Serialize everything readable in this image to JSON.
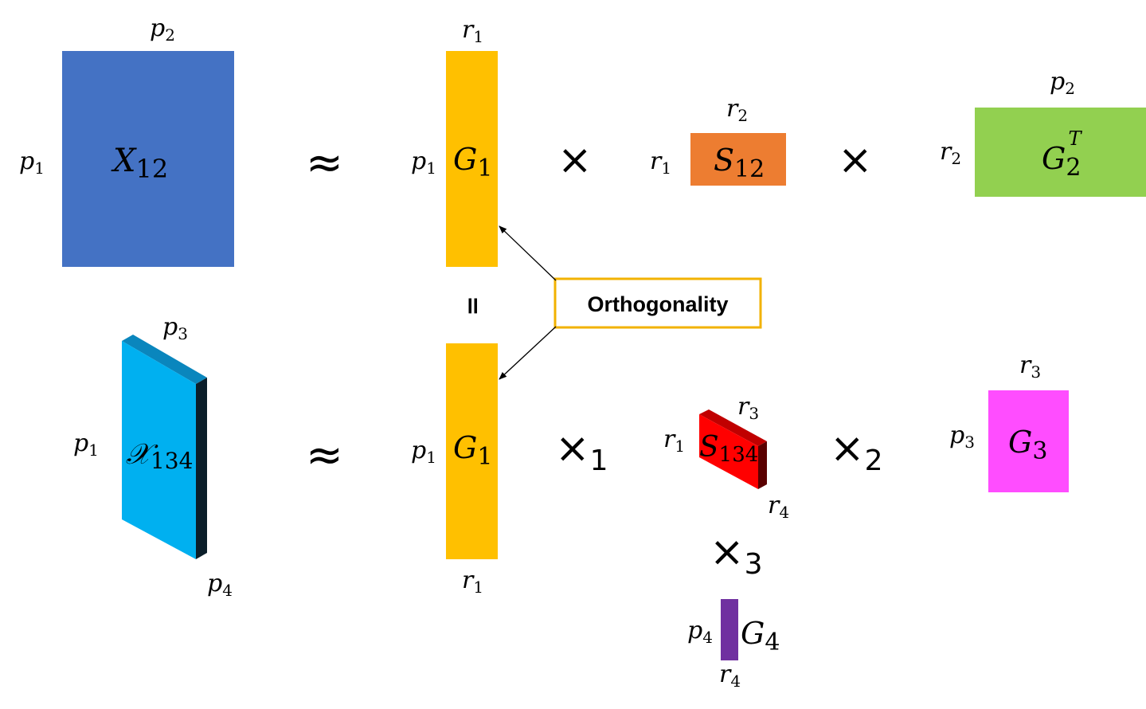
{
  "colors": {
    "x12": "#4472c4",
    "g1": "#ffc000",
    "s12": "#ed7d31",
    "g2t": "#92d050",
    "x134_front": "#00b0f0",
    "x134_top": "#0a86bd",
    "x134_side": "#0b1e2a",
    "s134_front": "#ff0000",
    "s134_top": "#c00000",
    "s134_side": "#5a0000",
    "g3": "#ff4dff",
    "g4": "#7030a0",
    "orthogonality_border": "#f2b200"
  },
  "row1": {
    "x12": {
      "name": "X",
      "sub": "12",
      "top_dim": "p",
      "top_dim_sub": "2",
      "left_dim": "p",
      "left_dim_sub": "1"
    },
    "approx": "≈",
    "g1": {
      "name": "G",
      "sub": "1",
      "top_dim": "r",
      "top_dim_sub": "1",
      "left_dim": "p",
      "left_dim_sub": "1"
    },
    "times_a": "×",
    "s12": {
      "name": "S",
      "sub": "12",
      "top_dim": "r",
      "top_dim_sub": "2",
      "left_dim": "r",
      "left_dim_sub": "1"
    },
    "times_b": "×",
    "g2t": {
      "name": "G",
      "sub": "2",
      "sup": "T",
      "top_dim": "p",
      "top_dim_sub": "2",
      "left_dim": "r",
      "left_dim_sub": "2"
    }
  },
  "equal_sign": "=",
  "orthogonality_label": "Orthogonality",
  "row2": {
    "x134": {
      "name": "𝒳",
      "sub": "134",
      "top_dim": "p",
      "top_dim_sub": "3",
      "left_dim": "p",
      "left_dim_sub": "1",
      "bottom_dim": "p",
      "bottom_dim_sub": "4"
    },
    "approx": "≈",
    "g1": {
      "name": "G",
      "sub": "1",
      "bottom_dim": "r",
      "bottom_dim_sub": "1",
      "left_dim": "p",
      "left_dim_sub": "1"
    },
    "times_1": "×",
    "times_1_sub": "1",
    "s134": {
      "name": "S",
      "sub": "134",
      "top_dim": "r",
      "top_dim_sub": "3",
      "left_dim": "r",
      "left_dim_sub": "1",
      "bottom_dim": "r",
      "bottom_dim_sub": "4"
    },
    "times_2": "×",
    "times_2_sub": "2",
    "g3": {
      "name": "G",
      "sub": "3",
      "top_dim": "r",
      "top_dim_sub": "3",
      "left_dim": "p",
      "left_dim_sub": "3"
    },
    "times_3": "×",
    "times_3_sub": "3",
    "g4": {
      "name": "G",
      "sub": "4",
      "bottom_dim": "r",
      "bottom_dim_sub": "4",
      "left_dim": "p",
      "left_dim_sub": "4"
    }
  }
}
